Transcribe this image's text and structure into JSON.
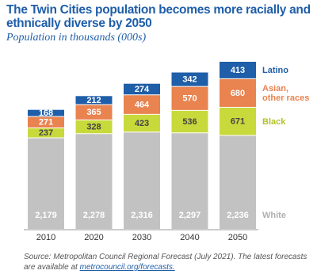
{
  "chart_data": {
    "type": "stacked_bar",
    "title": "The Twin Cities population becomes more racially and ethnically diverse by 2050",
    "subtitle": "Population in thousands (000s)",
    "categories": [
      "2010",
      "2020",
      "2030",
      "2040",
      "2050"
    ],
    "series": [
      {
        "name": "White",
        "color": "#c2c2c2",
        "values": [
          2179,
          2278,
          2316,
          2297,
          2236
        ],
        "value_labels": [
          "2,179",
          "2,278",
          "2,316",
          "2,297",
          "2,236"
        ]
      },
      {
        "name": "Black",
        "color": "#c8d93c",
        "values": [
          237,
          328,
          423,
          536,
          671
        ]
      },
      {
        "name": "Asian, other races",
        "color": "#e9834f",
        "values": [
          271,
          365,
          464,
          570,
          680
        ]
      },
      {
        "name": "Latino",
        "color": "#1f5ea8",
        "values": [
          168,
          212,
          274,
          342,
          413
        ]
      }
    ],
    "source": "Source: Metropolitan Council Regional Forecast (July 2021). The latest forecasts are available at",
    "source_link": "metrocouncil.org/forecasts."
  }
}
